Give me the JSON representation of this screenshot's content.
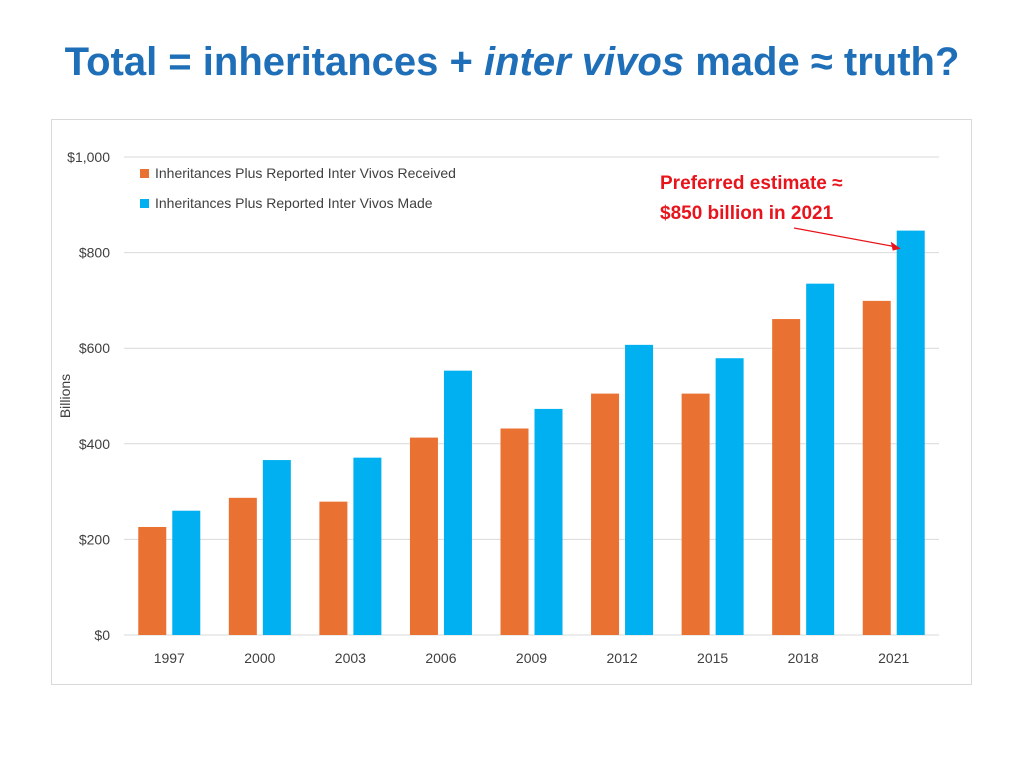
{
  "title": {
    "part1": "Total = inheritances + ",
    "part2_italic": "inter vivos",
    "part3": " made ≈ truth?"
  },
  "colors": {
    "title": "#1f6fb8",
    "received": "#e97132",
    "made": "#00b0f0",
    "annotation": "#e8141c",
    "grid": "#d9d9d9"
  },
  "chart_data": {
    "type": "bar",
    "categories": [
      "1997",
      "2000",
      "2003",
      "2006",
      "2009",
      "2012",
      "2015",
      "2018",
      "2021"
    ],
    "series": [
      {
        "name": "Inheritances Plus Reported Inter Vivos Received",
        "values": [
          226,
          287,
          279,
          413,
          432,
          505,
          505,
          661,
          699
        ]
      },
      {
        "name": "Inheritances Plus Reported Inter Vivos Made",
        "values": [
          260,
          366,
          371,
          553,
          473,
          607,
          579,
          735,
          846
        ]
      }
    ],
    "ylabel": "Billions",
    "xlabel": "",
    "ylim": [
      0,
      1000
    ],
    "yticks": [
      0,
      200,
      400,
      600,
      800,
      1000
    ],
    "ytick_labels": [
      "$0",
      "$200",
      "$400",
      "$600",
      "$800",
      "$1,000"
    ],
    "grid": true,
    "legend_position": "top-left",
    "annotation": {
      "line1": "Preferred estimate ≈",
      "line2": "$850 billion in 2021"
    }
  }
}
